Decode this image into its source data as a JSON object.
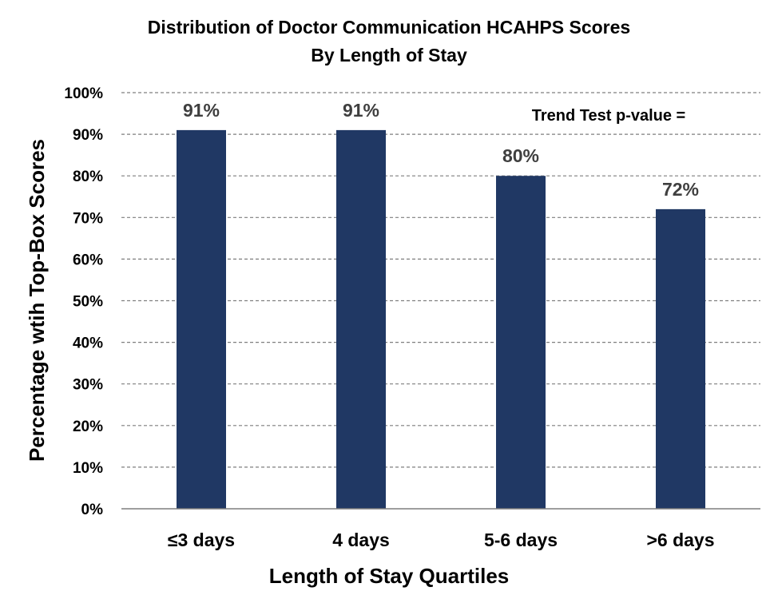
{
  "chart_data": {
    "type": "bar",
    "title": "Distribution of Doctor Communication HCAHPS Scores",
    "subtitle": "By Length of Stay",
    "xlabel": "Length of Stay Quartiles",
    "ylabel": "Percentage wtih Top-Box Scores",
    "categories": [
      "≤3 days",
      "4 days",
      "5-6 days",
      ">6 days"
    ],
    "values": [
      91,
      91,
      80,
      72
    ],
    "data_labels": [
      "91%",
      "91%",
      "80%",
      "72%"
    ],
    "ylim": [
      0,
      100
    ],
    "yticks": [
      0,
      10,
      20,
      30,
      40,
      50,
      60,
      70,
      80,
      90,
      100
    ],
    "ytick_labels": [
      "0%",
      "10%",
      "20%",
      "30%",
      "40%",
      "50%",
      "60%",
      "70%",
      "80%",
      "90%",
      "100%"
    ],
    "annotation": "Trend Test p-value =",
    "grid": true,
    "grid_style": "dashed",
    "legend": "none",
    "bar_color": "#203864",
    "gridline_color": "#7f7f7f",
    "data_label_color": "#3f3f3f"
  }
}
